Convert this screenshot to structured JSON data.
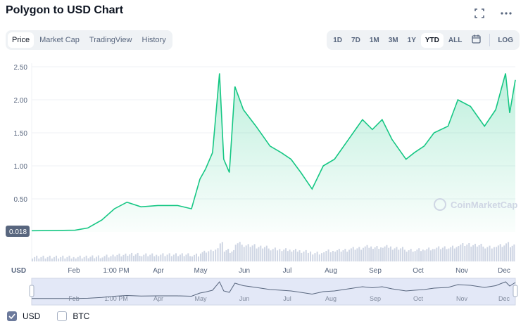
{
  "header": {
    "title": "Polygon to USD Chart"
  },
  "tabs_left": [
    {
      "label": "Price",
      "active": true
    },
    {
      "label": "Market Cap",
      "active": false
    },
    {
      "label": "TradingView",
      "active": false
    },
    {
      "label": "History",
      "active": false
    }
  ],
  "tabs_right": [
    {
      "label": "1D",
      "active": false
    },
    {
      "label": "7D",
      "active": false
    },
    {
      "label": "1M",
      "active": false
    },
    {
      "label": "3M",
      "active": false
    },
    {
      "label": "1Y",
      "active": false
    },
    {
      "label": "YTD",
      "active": true
    },
    {
      "label": "ALL",
      "active": false
    }
  ],
  "log_label": "LOG",
  "watermark": "CoinMarketCap",
  "price_marker": "0.018",
  "currency_label": "USD",
  "colors": {
    "line": "#16c784",
    "area": "#16c784",
    "volume": "#cfd6e4",
    "navigator": "#e3e8f7"
  },
  "legend": [
    {
      "label": "USD",
      "checked": true
    },
    {
      "label": "BTC",
      "checked": false
    }
  ],
  "icons": {
    "fullscreen": "fullscreen-icon",
    "more": "more-dots-icon",
    "calendar": "calendar-icon"
  },
  "chart_data": {
    "type": "area",
    "title": "",
    "ylabel": "",
    "ylim": [
      0,
      2.5
    ],
    "yticks": [
      "0.50",
      "1.00",
      "1.50",
      "2.00",
      "2.50"
    ],
    "xticks": [
      "Feb",
      "1:00 PM",
      "Apr",
      "May",
      "Jun",
      "Jul",
      "Aug",
      "Sep",
      "Oct",
      "Nov",
      "Dec"
    ],
    "navigator_ticks": [
      "Feb",
      "1:00 PM",
      "Apr",
      "May",
      "Jun",
      "Jul",
      "Aug",
      "Sep",
      "Oct",
      "Nov",
      "Dec"
    ],
    "series": [
      {
        "x": [
          "2021-01-01",
          "2021-01-15",
          "2021-02-01",
          "2021-02-10",
          "2021-02-20",
          "2021-03-01",
          "2021-03-10",
          "2021-03-20",
          "2021-04-01",
          "2021-04-15",
          "2021-04-25",
          "2021-05-01",
          "2021-05-05",
          "2021-05-10",
          "2021-05-15",
          "2021-05-18",
          "2021-05-22",
          "2021-05-26",
          "2021-06-01",
          "2021-06-10",
          "2021-06-20",
          "2021-06-28",
          "2021-07-05",
          "2021-07-12",
          "2021-07-20",
          "2021-07-28",
          "2021-08-05",
          "2021-08-15",
          "2021-08-25",
          "2021-09-01",
          "2021-09-08",
          "2021-09-15",
          "2021-09-25",
          "2021-10-01",
          "2021-10-08",
          "2021-10-15",
          "2021-10-25",
          "2021-11-01",
          "2021-11-10",
          "2021-11-20",
          "2021-11-28",
          "2021-12-05",
          "2021-12-08",
          "2021-12-12"
        ],
        "values": [
          0.018,
          0.02,
          0.025,
          0.06,
          0.18,
          0.35,
          0.45,
          0.38,
          0.4,
          0.4,
          0.35,
          0.8,
          0.95,
          1.2,
          2.4,
          1.1,
          0.9,
          2.2,
          1.85,
          1.6,
          1.3,
          1.2,
          1.1,
          0.9,
          0.65,
          1.0,
          1.1,
          1.4,
          1.7,
          1.55,
          1.7,
          1.4,
          1.1,
          1.2,
          1.3,
          1.5,
          1.6,
          2.0,
          1.9,
          1.6,
          1.85,
          2.4,
          1.8,
          2.3
        ]
      }
    ]
  }
}
